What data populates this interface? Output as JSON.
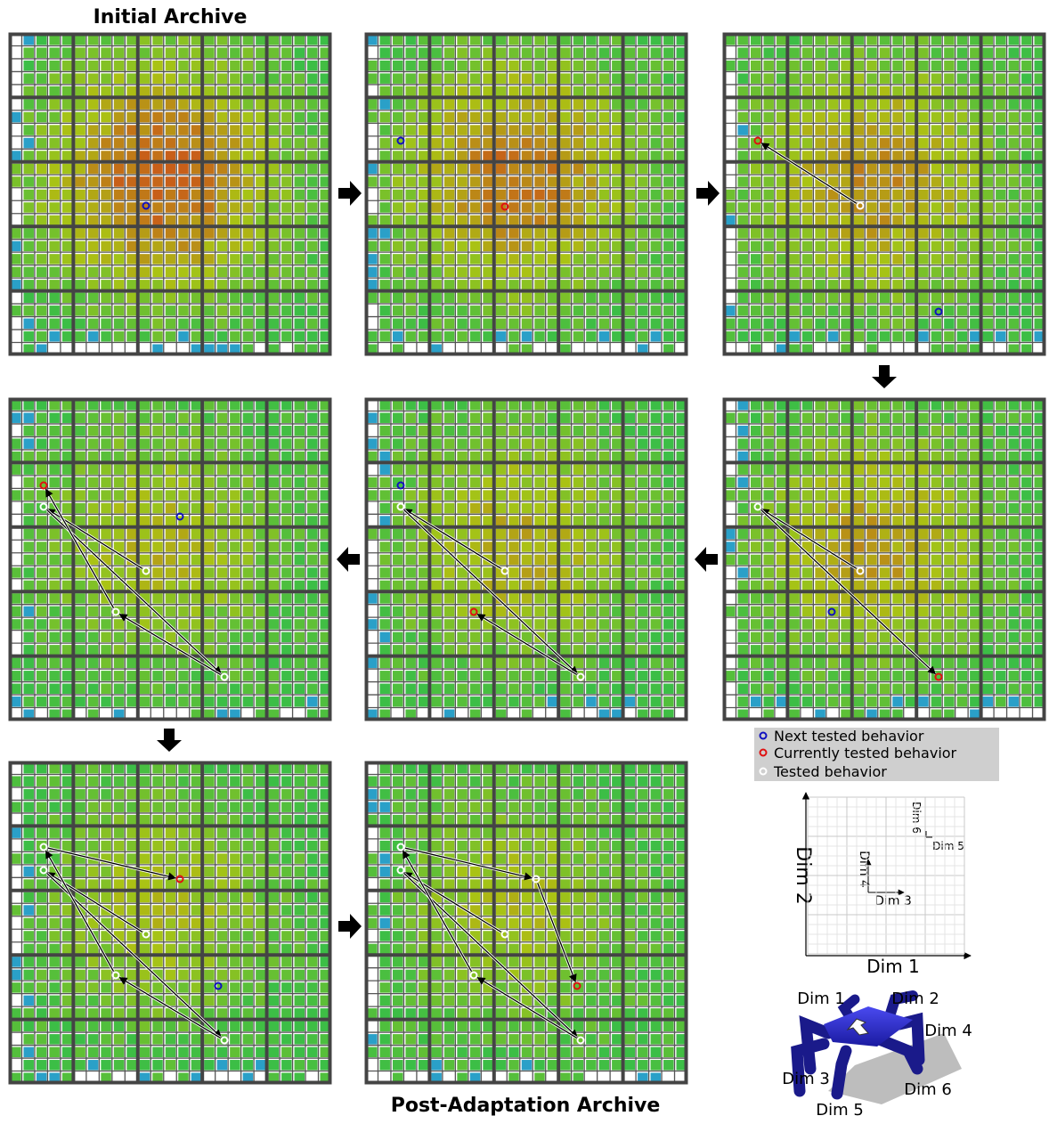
{
  "titles": {
    "initial": "Initial Archive",
    "post": "Post-Adaptation Archive"
  },
  "legend": [
    "Next tested behavior",
    "Currently tested behavior",
    "Tested behavior"
  ],
  "axis_inset": {
    "x": "Dim 1",
    "y": "Dim 2",
    "inner_x": "Dim 3",
    "inner_y": "Dim 4",
    "sub_x": "Dim 5",
    "sub_y": "Dim 6"
  },
  "robot": {
    "legs": [
      "Dim 1",
      "Dim 2",
      "Dim 3",
      "Dim 4",
      "Dim 5",
      "Dim 6"
    ]
  }
}
